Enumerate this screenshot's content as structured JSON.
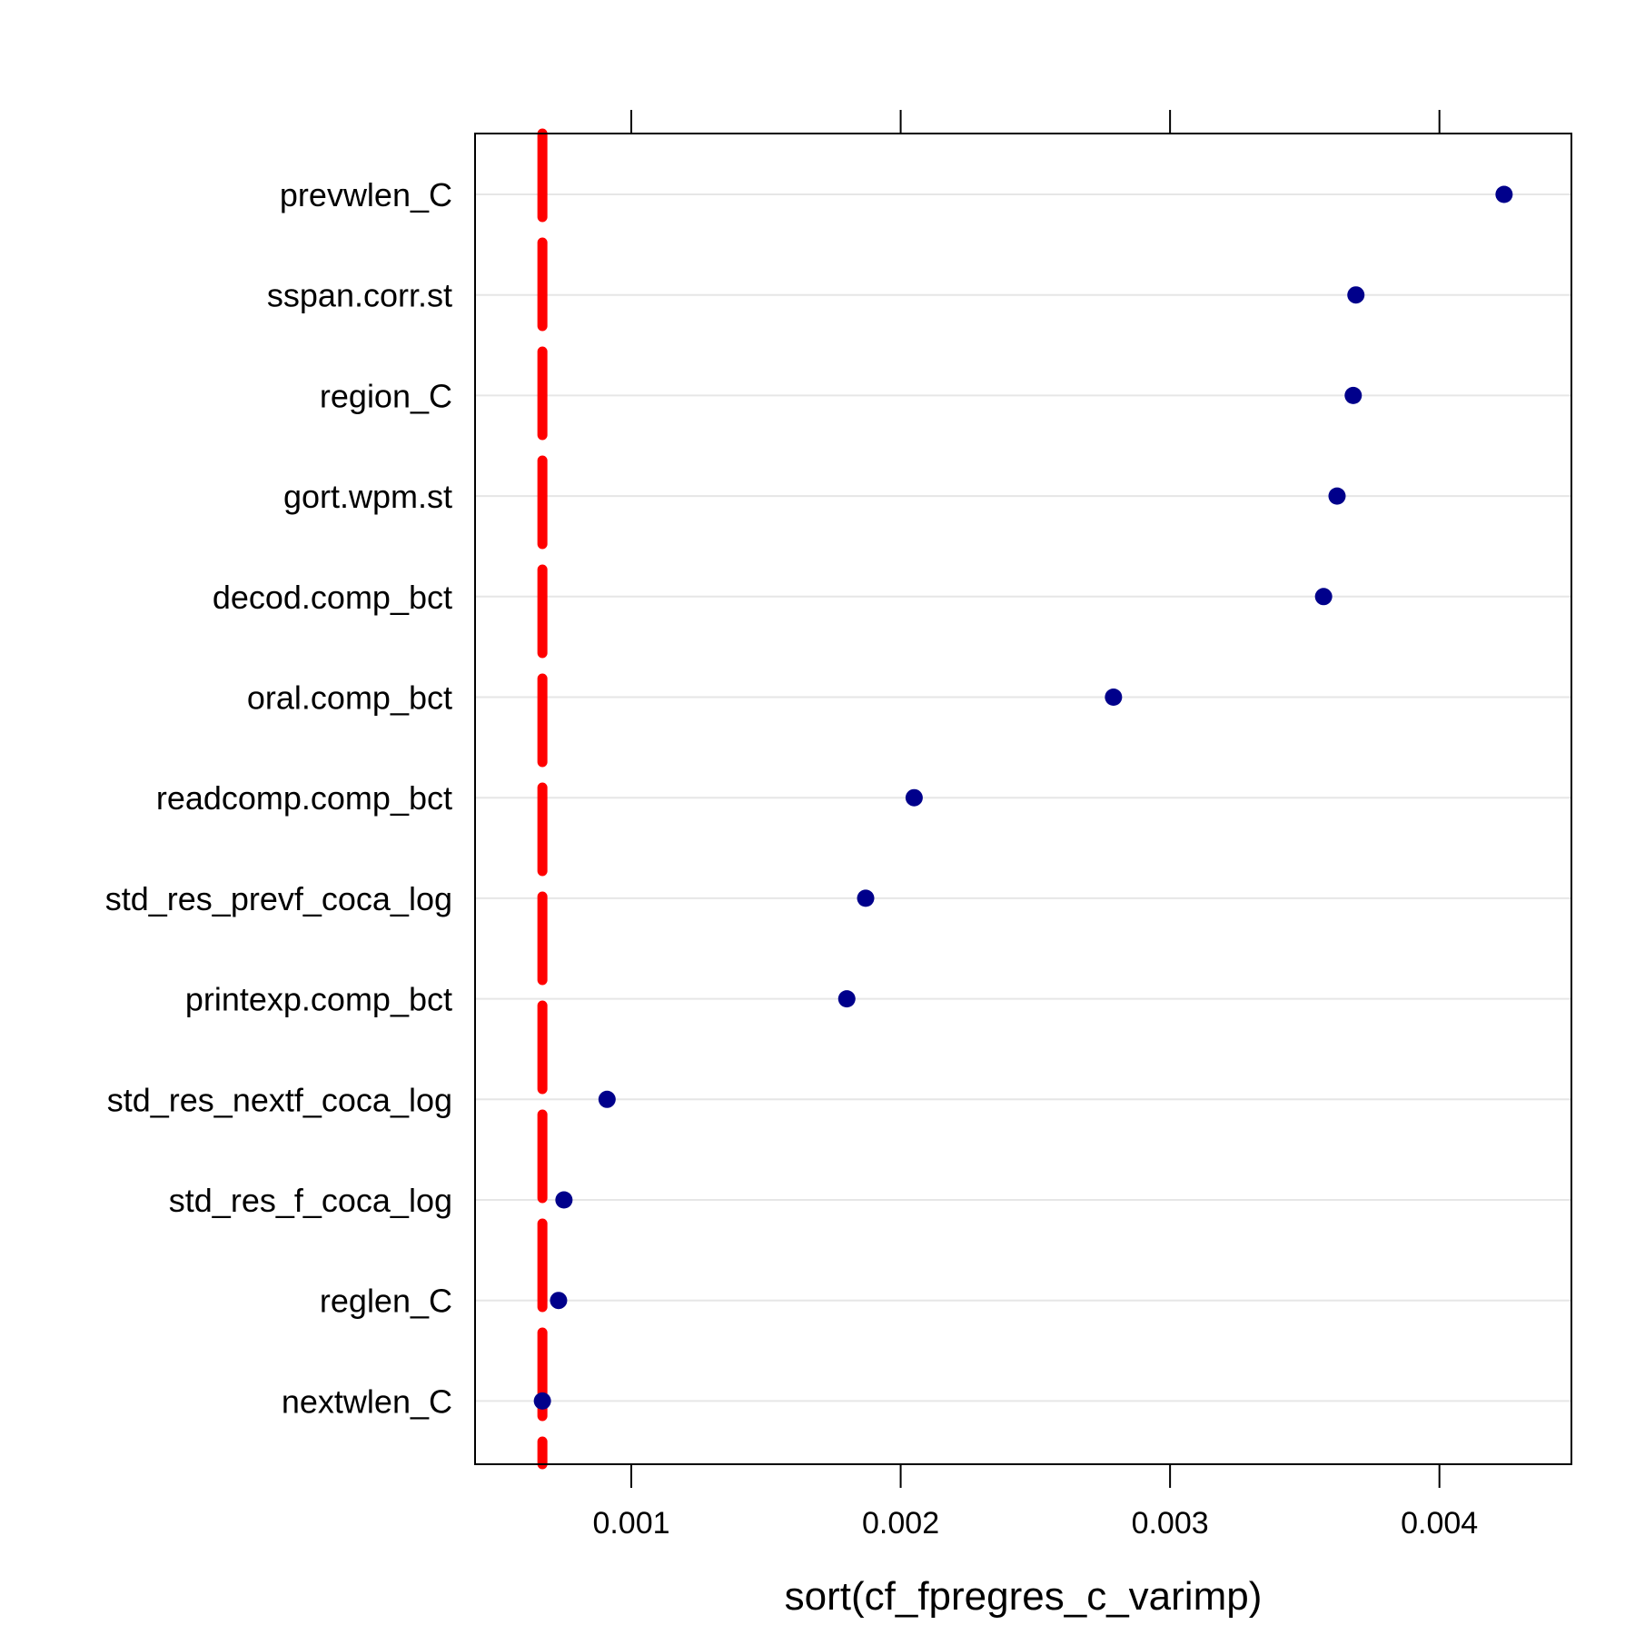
{
  "chart_data": {
    "type": "dotplot",
    "title": "",
    "xlabel": "sort(cf_fpregres_c_varimp)",
    "ylabel": "",
    "xlim": [
      0.00042,
      0.00449
    ],
    "x_ticks": [
      0.001,
      0.002,
      0.003,
      0.004
    ],
    "x_tick_labels": [
      "0.001",
      "0.002",
      "0.003",
      "0.004"
    ],
    "grid": true,
    "categories": [
      "prevwlen_C",
      "sspan.corr.st",
      "region_C",
      "gort.wpm.st",
      "decod.comp_bct",
      "oral.comp_bct",
      "readcomp.comp_bct",
      "std_res_prevf_coca_log",
      "printexp.comp_bct",
      "std_res_nextf_coca_log",
      "std_res_f_coca_log",
      "reglen_C",
      "nextwlen_C"
    ],
    "values": [
      0.00424,
      0.00369,
      0.00368,
      0.00362,
      0.00357,
      0.00279,
      0.00205,
      0.00187,
      0.0018,
      0.00091,
      0.00075,
      0.00073,
      0.00067
    ],
    "reference_line": {
      "value": 0.00067,
      "style": "dashed"
    },
    "colors": {
      "points": "#00008B",
      "reference_line": "#FF0000",
      "grid": "#E6E6E6",
      "axis": "#000000"
    }
  }
}
